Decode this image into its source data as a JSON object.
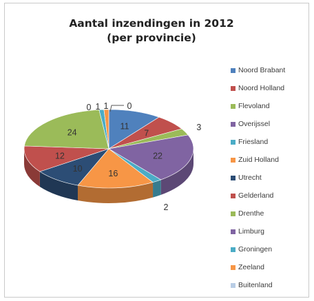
{
  "chart_data": {
    "type": "pie",
    "title": "Aantal inzendingen in 2012",
    "subtitle": "(per provincie)",
    "legend_position": "right",
    "slices": [
      {
        "name": "Noord Brabant",
        "value": 11,
        "label": "11",
        "color": "#4f81bd"
      },
      {
        "name": "Noord Holland",
        "value": 7,
        "label": "7",
        "color": "#c0504d"
      },
      {
        "name": "Flevoland",
        "value": 3,
        "label": "3",
        "color": "#9bbb59"
      },
      {
        "name": "Overijssel",
        "value": 22,
        "label": "22",
        "color": "#8064a2"
      },
      {
        "name": "Friesland",
        "value": 2,
        "label": "2",
        "color": "#4bacc6"
      },
      {
        "name": "Zuid Holland",
        "value": 16,
        "label": "16",
        "color": "#f79646"
      },
      {
        "name": "Utrecht",
        "value": 10,
        "label": "10",
        "color": "#2c4d75"
      },
      {
        "name": "Gelderland",
        "value": 12,
        "label": "12",
        "color": "#c0504d"
      },
      {
        "name": "Drenthe",
        "value": 24,
        "label": "24",
        "color": "#9bbb59"
      },
      {
        "name": "Limburg",
        "value": 0,
        "label": "0",
        "color": "#8064a2"
      },
      {
        "name": "Groningen",
        "value": 1,
        "label": "1",
        "color": "#4bacc6"
      },
      {
        "name": "Zeeland",
        "value": 1,
        "label": "1",
        "color": "#f79646"
      },
      {
        "name": "Buitenland",
        "value": 0,
        "label": "0",
        "color": "#b9cde5"
      }
    ]
  }
}
